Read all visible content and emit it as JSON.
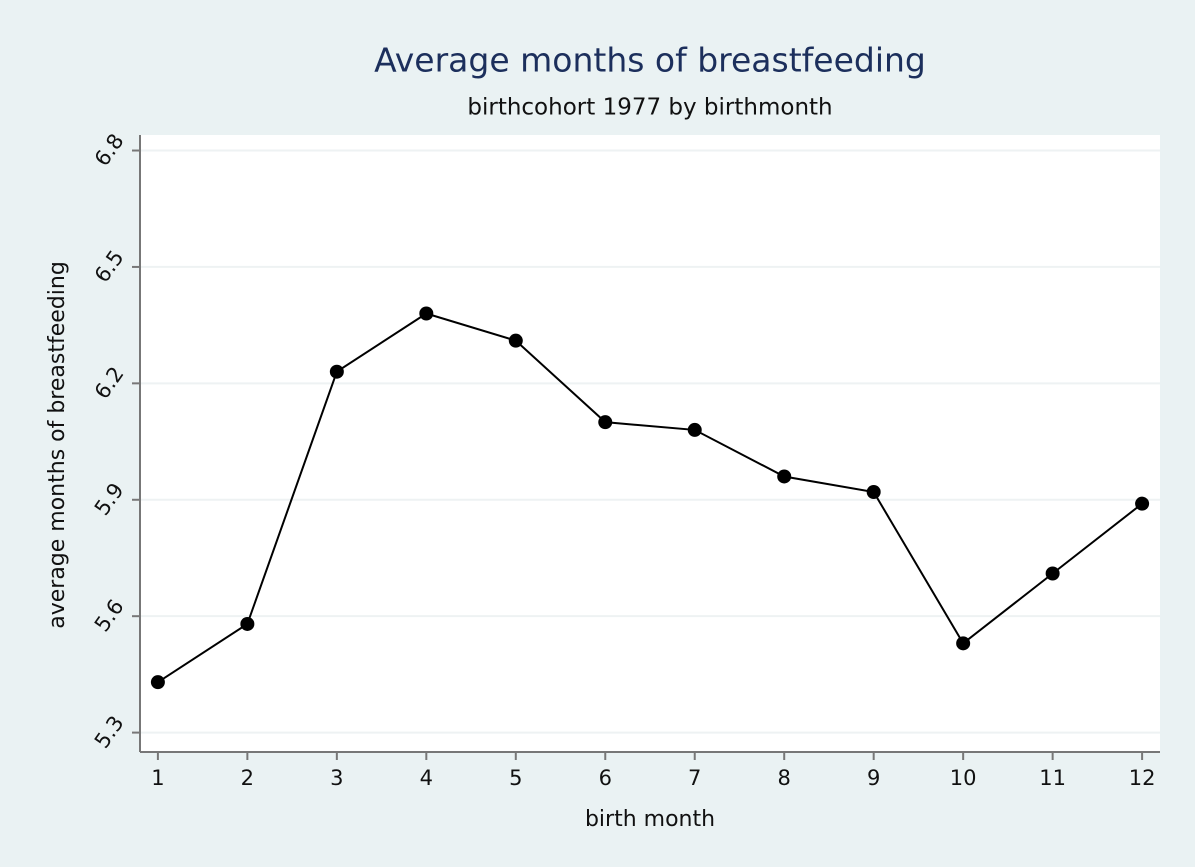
{
  "chart_data": {
    "type": "line",
    "title": "Average months of breastfeeding",
    "subtitle": "birthcohort 1977 by birthmonth",
    "x_label": "birth month",
    "y_label": "average months of breastfeeding",
    "x": [
      1,
      2,
      3,
      4,
      5,
      6,
      7,
      8,
      9,
      10,
      11,
      12
    ],
    "series": [
      {
        "name": "average months of breastfeeding",
        "color": "#000000",
        "values": [
          5.43,
          5.58,
          6.23,
          6.38,
          6.31,
          6.1,
          6.08,
          5.96,
          5.92,
          5.53,
          5.71,
          5.89
        ]
      }
    ],
    "xlim": [
      0.8,
      12.2
    ],
    "xticks": [
      1,
      2,
      3,
      4,
      5,
      6,
      7,
      8,
      9,
      10,
      11,
      12
    ],
    "ylim": [
      5.25,
      6.84
    ],
    "yticks": [
      5.3,
      5.6,
      5.9,
      6.2,
      6.5,
      6.8
    ],
    "grid": true
  }
}
